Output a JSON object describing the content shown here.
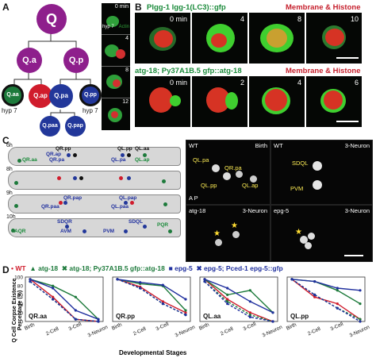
{
  "panel_a": {
    "letter": "A",
    "nodes": {
      "q": "Q",
      "qa": "Q.a",
      "qp": "Q.p",
      "qaa": "Q.aa",
      "qap": "Q.ap",
      "qpa": "Q.pa",
      "qpp": "Q.pp",
      "qpaa": "Q.paa",
      "qpap": "Q.pap"
    },
    "hyp_left": "hyp 7",
    "hyp_right": "hyp 7",
    "film_hyp": "hyp 7",
    "film_actin": "Actin",
    "film_times": [
      "0 min",
      "4",
      "8",
      "12"
    ],
    "colors": {
      "q": "#8e1f8c",
      "red": "#d01c2c",
      "blue": "#22379a",
      "green": "#1d7a3b"
    }
  },
  "panel_b": {
    "letter": "B",
    "row1_title": "Plgg-1 lgg-1(LC3)::gfp",
    "row1_right": "Membrane & Histone",
    "row1_times": [
      "0 min",
      "4",
      "8",
      "10"
    ],
    "row2_title": "atg-18; Py37A1B.5 gfp::atg-18",
    "row2_right": "Membrane & Histone",
    "row2_times": [
      "0 min",
      "2",
      "4",
      "6"
    ]
  },
  "panel_c": {
    "letter": "C",
    "rows": [
      {
        "time": "6h",
        "labels": [
          {
            "t": "QR.pp",
            "c": "black"
          },
          {
            "t": "QL.pp",
            "c": "black"
          },
          {
            "t": "QL.aa",
            "c": "black"
          },
          {
            "t": "QR.ap",
            "c": "blue"
          },
          {
            "t": "QR.pa",
            "c": "blue"
          },
          {
            "t": "QL.pa",
            "c": "blue"
          },
          {
            "t": "QL.ap",
            "c": "green"
          },
          {
            "t": "QR.aa",
            "c": "green"
          }
        ]
      },
      {
        "time": "8h",
        "labels": []
      },
      {
        "time": "9h",
        "labels": [
          {
            "t": "QR.pap",
            "c": "blue"
          },
          {
            "t": "QL.pap",
            "c": "blue"
          },
          {
            "t": "QR.paa",
            "c": "blue"
          },
          {
            "t": "QL.paa",
            "c": "blue"
          }
        ]
      },
      {
        "time": "10h",
        "labels": [
          {
            "t": "SDQR",
            "c": "blue"
          },
          {
            "t": "SDQL",
            "c": "blue"
          },
          {
            "t": "AVM",
            "c": "blue"
          },
          {
            "t": "PVM",
            "c": "blue"
          },
          {
            "t": "AQR",
            "c": "green"
          },
          {
            "t": "PQR",
            "c": "green"
          }
        ]
      }
    ],
    "micro": [
      {
        "tl": "WT",
        "tr": "Birth",
        "labels": [
          "QL.pa",
          "QR.pa",
          "QL.pp",
          "QL.ap"
        ],
        "axis": "A P"
      },
      {
        "tl": "WT",
        "tr": "3-Neuron",
        "labels": [
          "SDQL",
          "PVM"
        ]
      },
      {
        "tl": "atg-18",
        "tr": "3-Neuron",
        "labels": []
      },
      {
        "tl": "epg-5",
        "tr": "3-Neuron",
        "labels": []
      }
    ]
  },
  "panel_d": {
    "letter": "D",
    "legend": [
      {
        "t": "WT",
        "c": "#d01c2c",
        "m": "•"
      },
      {
        "t": "atg-18",
        "c": "#1d7a3b",
        "m": "▲"
      },
      {
        "t": "atg-18; Py37A1B.5 gfp::atg-18",
        "c": "#1d7a3b",
        "m": "✖"
      },
      {
        "t": "epg-5",
        "c": "#1f2f9e",
        "m": "■"
      },
      {
        "t": "epg-5; Pced-1 epg-5::gfp",
        "c": "#1f2f9e",
        "m": "✖"
      }
    ],
    "ylabel": "Q Cell Corpse Existence Percentage (%)",
    "xlabel": "Developmental Stages",
    "ticks_y": [
      "100",
      "80",
      "60",
      "40",
      "20",
      "0"
    ]
  },
  "chart_data": [
    {
      "type": "line",
      "title": "QR.aa",
      "categories": [
        "Birth",
        "2-Cell",
        "3-Cell",
        "3-Neuron"
      ],
      "ylim": [
        0,
        100
      ],
      "series": [
        {
          "name": "WT",
          "values": [
            95,
            55,
            5,
            0
          ]
        },
        {
          "name": "atg-18",
          "values": [
            95,
            80,
            55,
            5
          ]
        },
        {
          "name": "atg-18; Py37A1B.5 gfp::atg-18",
          "values": [
            90,
            50,
            5,
            0
          ]
        },
        {
          "name": "epg-5",
          "values": [
            95,
            75,
            25,
            5
          ]
        },
        {
          "name": "epg-5; Pced-1 epg-5::gfp",
          "values": [
            90,
            50,
            5,
            0
          ]
        }
      ]
    },
    {
      "type": "line",
      "title": "QR.pp",
      "categories": [
        "Birth",
        "2-Cell",
        "3-Cell",
        "3-Neuron"
      ],
      "ylim": [
        0,
        100
      ],
      "series": [
        {
          "name": "WT",
          "values": [
            95,
            78,
            45,
            20
          ]
        },
        {
          "name": "atg-18",
          "values": [
            95,
            85,
            80,
            25
          ]
        },
        {
          "name": "atg-18; Py37A1B.5 gfp::atg-18",
          "values": [
            95,
            75,
            40,
            15
          ]
        },
        {
          "name": "epg-5",
          "values": [
            95,
            88,
            82,
            50
          ]
        },
        {
          "name": "epg-5; Pced-1 epg-5::gfp",
          "values": [
            95,
            75,
            40,
            15
          ]
        }
      ]
    },
    {
      "type": "line",
      "title": "QL.aa",
      "categories": [
        "Birth",
        "2-Cell",
        "3-Cell",
        "3-Neuron"
      ],
      "ylim": [
        0,
        100
      ],
      "series": [
        {
          "name": "WT",
          "values": [
            95,
            50,
            20,
            0
          ]
        },
        {
          "name": "atg-18",
          "values": [
            95,
            60,
            70,
            20
          ]
        },
        {
          "name": "atg-18; Py37A1B.5 gfp::atg-18",
          "values": [
            90,
            45,
            15,
            0
          ]
        },
        {
          "name": "epg-5",
          "values": [
            95,
            75,
            45,
            20
          ]
        },
        {
          "name": "epg-5; Pced-1 epg-5::gfp",
          "values": [
            90,
            40,
            10,
            0
          ]
        }
      ]
    },
    {
      "type": "line",
      "title": "QL.pp",
      "categories": [
        "Birth",
        "2-Cell",
        "3-Cell",
        "3-Neuron"
      ],
      "ylim": [
        0,
        100
      ],
      "series": [
        {
          "name": "WT",
          "values": [
            95,
            55,
            40,
            5
          ]
        },
        {
          "name": "atg-18",
          "values": [
            95,
            90,
            70,
            40
          ]
        },
        {
          "name": "atg-18; Py37A1B.5 gfp::atg-18",
          "values": [
            95,
            60,
            30,
            5
          ]
        },
        {
          "name": "epg-5",
          "values": [
            95,
            90,
            75,
            70
          ]
        },
        {
          "name": "epg-5; Pced-1 epg-5::gfp",
          "values": [
            95,
            60,
            30,
            0
          ]
        }
      ]
    }
  ]
}
